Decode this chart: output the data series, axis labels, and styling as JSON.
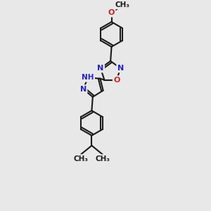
{
  "background_color": "#e8e8e8",
  "bond_color": "#1a1a1a",
  "bond_width": 1.5,
  "N_color": "#2222cc",
  "O_color": "#cc2222",
  "C_color": "#1a1a1a",
  "fig_size": [
    3.0,
    3.0
  ],
  "dpi": 100,
  "xlim": [
    -2.5,
    2.5
  ],
  "ylim": [
    -5.5,
    4.5
  ]
}
